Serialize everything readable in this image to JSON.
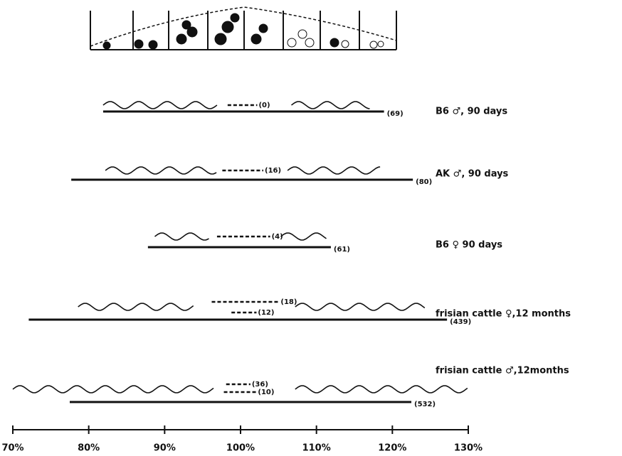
{
  "xlim": [
    70,
    130
  ],
  "ticks": [
    {
      "value": 70,
      "label": "70%"
    },
    {
      "value": 80,
      "label": "80%"
    },
    {
      "value": 90,
      "label": "90%"
    },
    {
      "value": 100,
      "label": "100%"
    },
    {
      "value": 110,
      "label": "110%"
    },
    {
      "value": 120,
      "label": "120%"
    },
    {
      "value": 130,
      "label": "130%"
    }
  ],
  "rows": [
    {
      "label": "B6 ♂, 90 days",
      "range": [
        81.9,
        118.9
      ],
      "range_label": "(69)",
      "wavy": [
        [
          81.9,
          96.9
        ],
        [
          106.7,
          117.1
        ]
      ],
      "dashed": [
        {
          "range": [
            98.3,
            102.2
          ],
          "label": "(0)"
        }
      ]
    },
    {
      "label": "AK ♂, 90 days",
      "range": [
        77.7,
        122.7
      ],
      "range_label": "(80)",
      "wavy": [
        [
          82.2,
          96.9
        ],
        [
          106.2,
          118.4
        ]
      ],
      "dashed": [
        {
          "range": [
            97.6,
            103.0
          ],
          "label": "(16)"
        }
      ]
    },
    {
      "label": "B6 ♀ 90 days",
      "range": [
        87.8,
        111.9
      ],
      "range_label": "(61)",
      "wavy": [
        [
          88.7,
          95.9
        ],
        [
          105.3,
          111.4
        ]
      ],
      "dashed": [
        {
          "range": [
            96.9,
            103.9
          ],
          "label": "(4)"
        }
      ]
    },
    {
      "label": "frisian cattle ♀,12 months",
      "range": [
        72.1,
        127.2
      ],
      "range_label": "(439)",
      "wavy": [
        [
          78.6,
          93.8
        ],
        [
          107.2,
          124.4
        ]
      ],
      "dashed": [
        {
          "range": [
            96.2,
            105.1
          ],
          "label": "(18)"
        },
        {
          "range": [
            98.8,
            102.1
          ],
          "label": "(12)"
        }
      ]
    },
    {
      "label": "frisian cattle ♂,12months",
      "range": [
        77.5,
        122.5
      ],
      "range_label": "(532)",
      "wavy": [
        [
          70,
          96.6
        ],
        [
          107.2,
          130
        ]
      ],
      "dashed": [
        {
          "range": [
            98.1,
            101.3
          ],
          "label": "(36)"
        },
        {
          "range": [
            97.8,
            102.1
          ],
          "label": "(10)"
        }
      ]
    }
  ]
}
